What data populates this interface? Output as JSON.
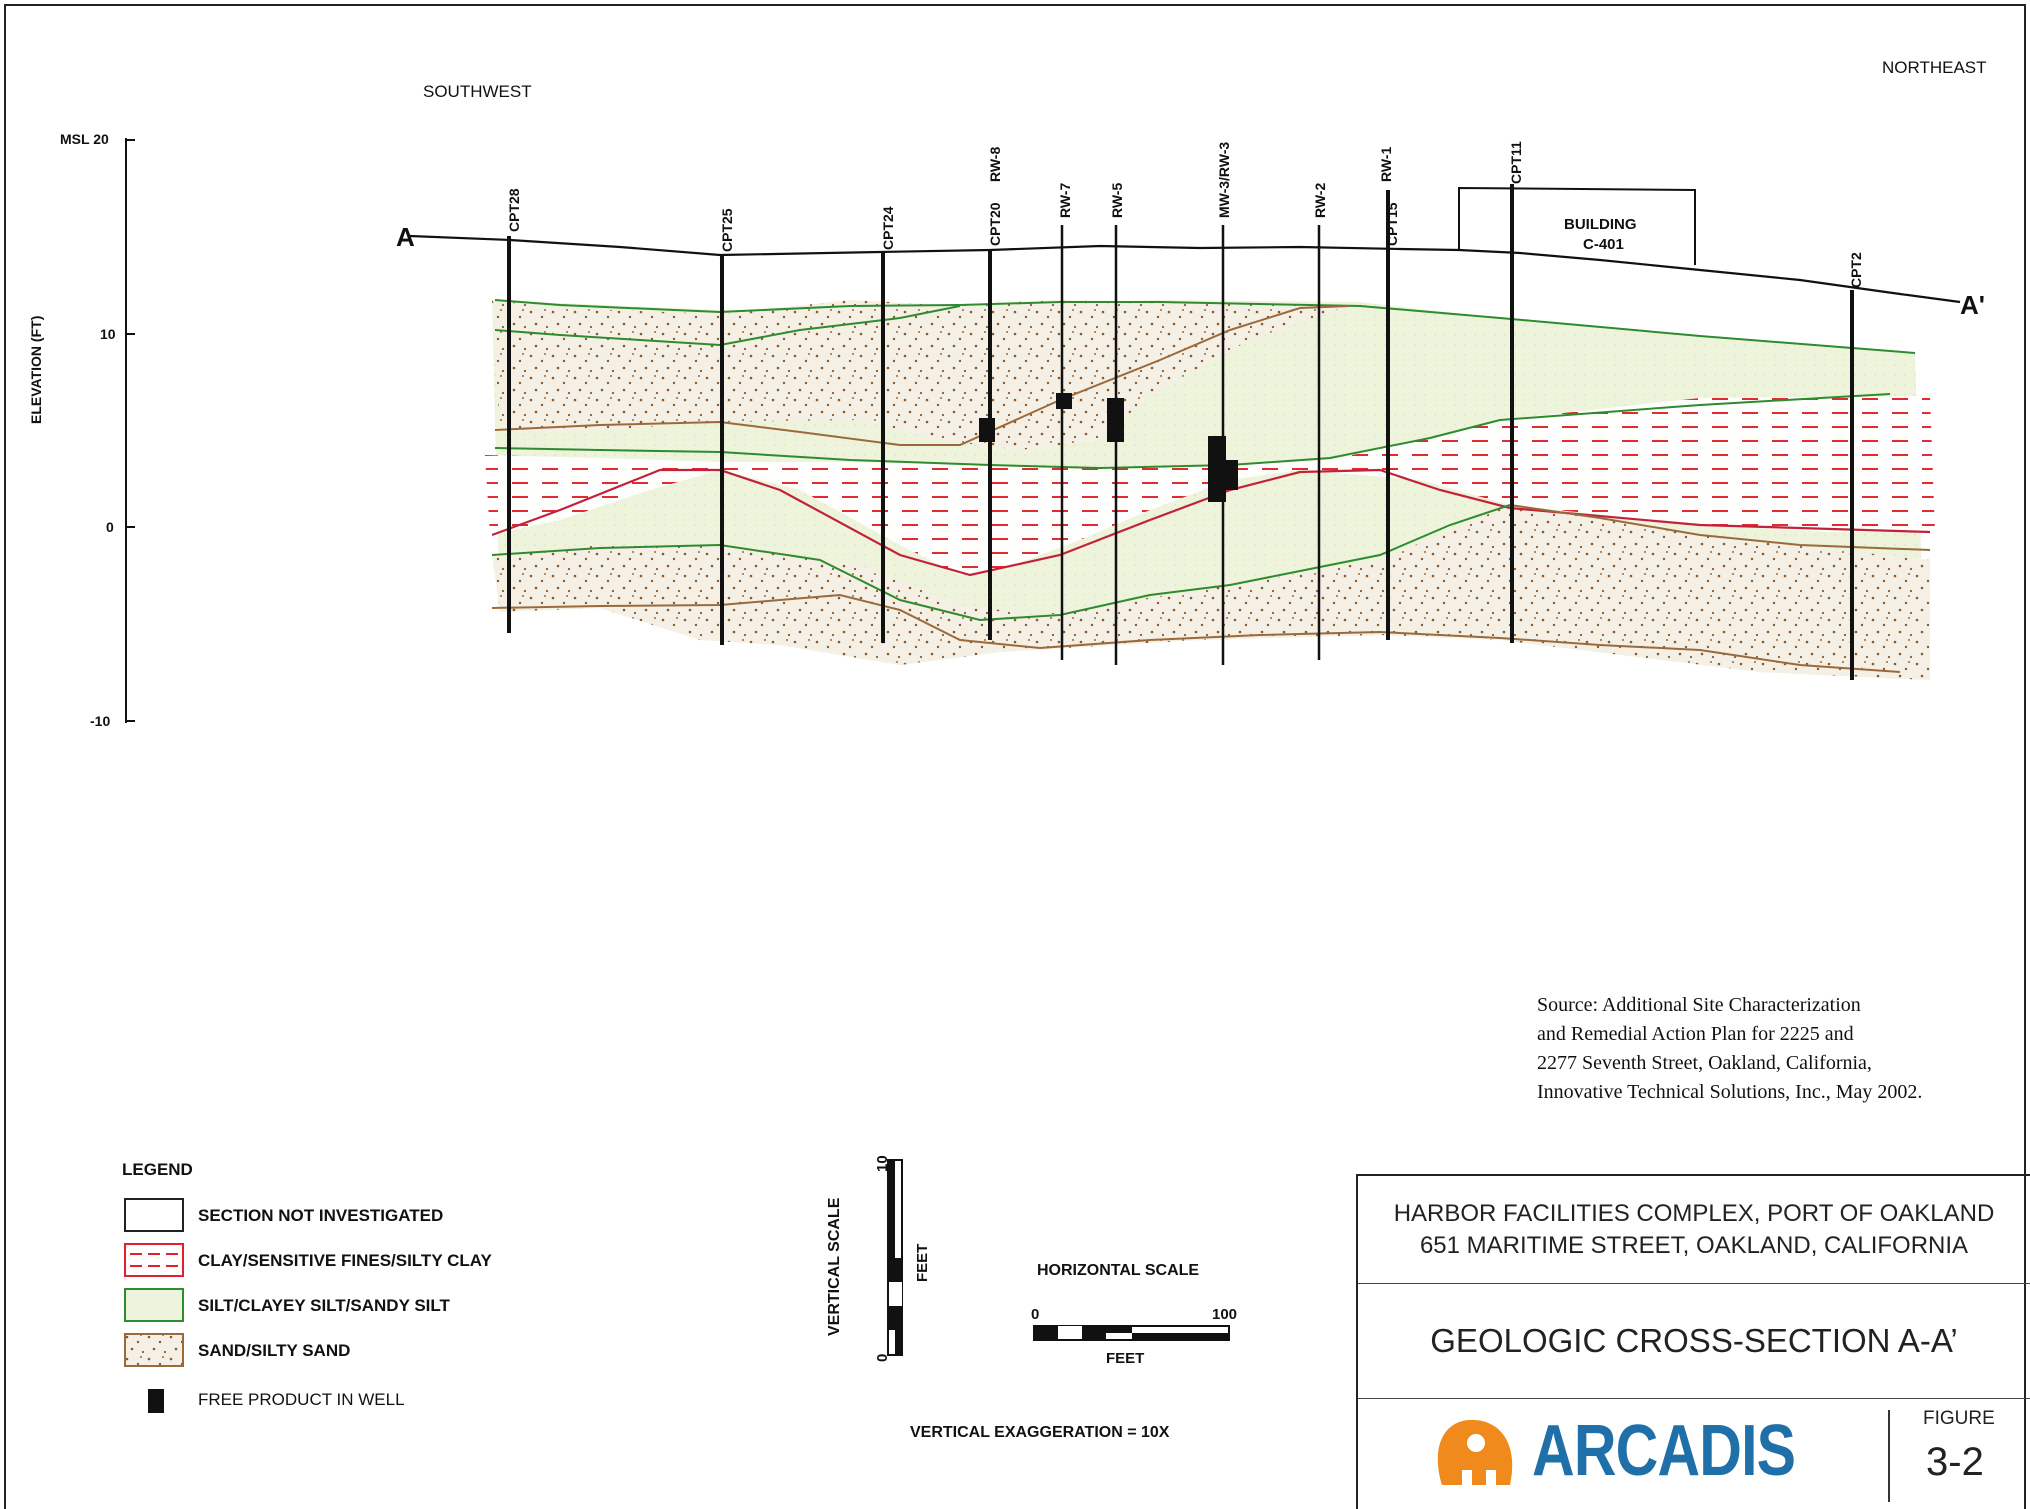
{
  "section": {
    "direction_left": "SOUTHWEST",
    "direction_right": "NORTHEAST",
    "start_label": "A",
    "end_label": "A'",
    "y_axis_label": "ELEVATION (FT)",
    "y_ticks": [
      "MSL 20",
      "10",
      "0",
      "-10"
    ],
    "building_label_1": "BUILDING",
    "building_label_2": "C-401",
    "wells": [
      "CPT28",
      "CPT25",
      "CPT24",
      "CPT20",
      "RW-8",
      "RW-7",
      "RW-5",
      "MW-3/RW-3",
      "RW-2",
      "RW-1",
      "CPT15",
      "CPT11",
      "CPT2"
    ]
  },
  "source_note": {
    "line1": "Source: Additional Site Characterization",
    "line2": "and Remedial Action Plan for 2225 and",
    "line3": "2277 Seventh Street, Oakland, California,",
    "line4": "Innovative Technical Solutions, Inc., May 2002."
  },
  "legend": {
    "title": "LEGEND",
    "items": [
      {
        "label": "SECTION NOT INVESTIGATED"
      },
      {
        "label": "CLAY/SENSITIVE FINES/SILTY CLAY"
      },
      {
        "label": "SILT/CLAYEY SILT/SANDY SILT"
      },
      {
        "label": "SAND/SILTY SAND"
      },
      {
        "label": "FREE PRODUCT IN WELL"
      }
    ],
    "colors": {
      "clay": "#e0202a",
      "silt": "#2e8b2e",
      "sand": "#9b6a3c",
      "silt_fill": "#eef3dc",
      "sand_fill": "#f4efe2"
    }
  },
  "scales": {
    "vertical_label": "VERTICAL SCALE",
    "vertical_unit": "FEET",
    "vertical_min": "0",
    "vertical_max": "10",
    "horizontal_label": "HORIZONTAL SCALE",
    "horizontal_unit": "FEET",
    "horizontal_min": "0",
    "horizontal_max": "100",
    "exaggeration": "VERTICAL EXAGGERATION = 10X"
  },
  "title_block": {
    "line1": "HARBOR FACILITIES COMPLEX, PORT OF OAKLAND",
    "line2": "651 MARITIME STREET, OAKLAND, CALIFORNIA",
    "title": "GEOLOGIC CROSS-SECTION A-A’",
    "company": "ARCADIS",
    "figure_label": "FIGURE",
    "figure_number": "3-2"
  }
}
